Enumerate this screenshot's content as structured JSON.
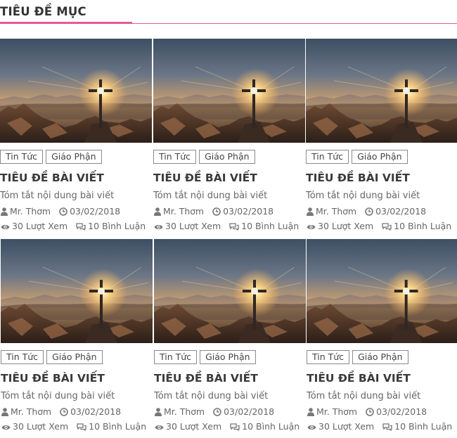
{
  "section": {
    "title": "TIÊU ĐỀ MỤC"
  },
  "colors": {
    "accent": "#e05a9a",
    "text": "#3a3a3a",
    "muted": "#666666",
    "icon": "#777777"
  },
  "posts": [
    {
      "tags": [
        "Tin Tức",
        "Giáo Phận"
      ],
      "title": "TIÊU ĐỀ BÀI VIẾT",
      "summary": "Tóm tắt nội dung bài viết",
      "author": "Mr. Thơm",
      "date": "03/02/2018",
      "views": "30 Lượt Xem",
      "comments": "10 Bình Luận"
    },
    {
      "tags": [
        "Tin Tức",
        "Giáo Phận"
      ],
      "title": "TIÊU ĐỀ BÀI VIẾT",
      "summary": "Tóm tắt nội dung bài viết",
      "author": "Mr. Thơm",
      "date": "03/02/2018",
      "views": "30 Lượt Xem",
      "comments": "10 Bình Luận"
    },
    {
      "tags": [
        "Tin Tức",
        "Giáo Phận"
      ],
      "title": "TIÊU ĐỀ BÀI VIẾT",
      "summary": "Tóm tắt nội dung bài viết",
      "author": "Mr. Thơm",
      "date": "03/02/2018",
      "views": "30 Lượt Xem",
      "comments": "10 Bình Luận"
    },
    {
      "tags": [
        "Tin Tức",
        "Giáo Phận"
      ],
      "title": "TIÊU ĐỀ BÀI VIẾT",
      "summary": "Tóm tắt nội dung bài viết",
      "author": "Mr. Thơm",
      "date": "03/02/2018",
      "views": "30 Lượt Xem",
      "comments": "10 Bình Luận"
    },
    {
      "tags": [
        "Tin Tức",
        "Giáo Phận"
      ],
      "title": "TIÊU ĐỀ BÀI VIẾT",
      "summary": "Tóm tắt nội dung bài viết",
      "author": "Mr. Thơm",
      "date": "03/02/2018",
      "views": "30 Lượt Xem",
      "comments": "10 Bình Luận"
    },
    {
      "tags": [
        "Tin Tức",
        "Giáo Phận"
      ],
      "title": "TIÊU ĐỀ BÀI VIẾT",
      "summary": "Tóm tắt nội dung bài viết",
      "author": "Mr. Thơm",
      "date": "03/02/2018",
      "views": "30 Lượt Xem",
      "comments": "10 Bình Luận"
    }
  ],
  "icons": {
    "author": "user-icon",
    "date": "clock-icon",
    "views": "eye-icon",
    "comments": "comments-icon",
    "thumbnail": "mountain-cross-sunset-image"
  }
}
